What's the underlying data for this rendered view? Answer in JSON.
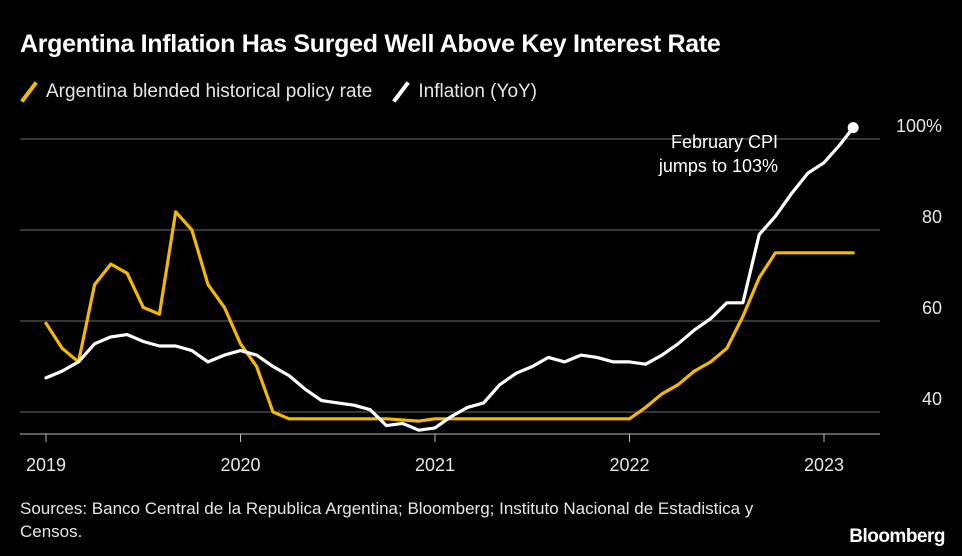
{
  "chart_data": {
    "type": "line",
    "title": "Argentina Inflation Has Surged Well Above Key Interest Rate",
    "x_ticks": [
      "2019",
      "2020",
      "2021",
      "2022",
      "2023"
    ],
    "y_ticks": [
      {
        "value": 40,
        "label": "40"
      },
      {
        "value": 60,
        "label": "60"
      },
      {
        "value": 80,
        "label": "80"
      },
      {
        "value": 100,
        "label": "100%"
      }
    ],
    "xlim": [
      2019.0,
      2023.29
    ],
    "ylim": [
      35,
      110
    ],
    "series": [
      {
        "name": "Argentina blended historical policy rate",
        "color": "#F5B800",
        "points": [
          [
            2019.0,
            59.5
          ],
          [
            2019.083,
            54
          ],
          [
            2019.167,
            51
          ],
          [
            2019.25,
            68
          ],
          [
            2019.333,
            72.5
          ],
          [
            2019.417,
            70.5
          ],
          [
            2019.5,
            63
          ],
          [
            2019.583,
            61.5
          ],
          [
            2019.667,
            84
          ],
          [
            2019.75,
            80
          ],
          [
            2019.833,
            68
          ],
          [
            2019.917,
            63
          ],
          [
            2020.0,
            55
          ],
          [
            2020.083,
            50
          ],
          [
            2020.167,
            40
          ],
          [
            2020.25,
            38.5
          ],
          [
            2020.5,
            38.5
          ],
          [
            2020.75,
            38.5
          ],
          [
            2020.917,
            38
          ],
          [
            2021.0,
            38.5
          ],
          [
            2021.5,
            38.5
          ],
          [
            2022.0,
            38.5
          ],
          [
            2022.083,
            41
          ],
          [
            2022.167,
            44
          ],
          [
            2022.25,
            46
          ],
          [
            2022.333,
            49
          ],
          [
            2022.417,
            51
          ],
          [
            2022.5,
            54
          ],
          [
            2022.583,
            61
          ],
          [
            2022.667,
            69.5
          ],
          [
            2022.75,
            75
          ],
          [
            2022.833,
            75
          ],
          [
            2023.0,
            75
          ],
          [
            2023.15,
            75
          ]
        ]
      },
      {
        "name": "Inflation (YoY)",
        "color": "#FFFFFF",
        "points": [
          [
            2019.0,
            47.5
          ],
          [
            2019.083,
            49
          ],
          [
            2019.167,
            51
          ],
          [
            2019.25,
            55
          ],
          [
            2019.333,
            56.5
          ],
          [
            2019.417,
            57
          ],
          [
            2019.5,
            55.5
          ],
          [
            2019.583,
            54.5
          ],
          [
            2019.667,
            54.5
          ],
          [
            2019.75,
            53.5
          ],
          [
            2019.833,
            51
          ],
          [
            2019.917,
            52.5
          ],
          [
            2020.0,
            53.5
          ],
          [
            2020.083,
            52.5
          ],
          [
            2020.167,
            50
          ],
          [
            2020.25,
            48
          ],
          [
            2020.333,
            45
          ],
          [
            2020.417,
            42.5
          ],
          [
            2020.5,
            42
          ],
          [
            2020.583,
            41.5
          ],
          [
            2020.667,
            40.5
          ],
          [
            2020.75,
            37
          ],
          [
            2020.833,
            37.5
          ],
          [
            2020.917,
            36
          ],
          [
            2021.0,
            36.5
          ],
          [
            2021.083,
            39
          ],
          [
            2021.167,
            41
          ],
          [
            2021.25,
            42
          ],
          [
            2021.333,
            46
          ],
          [
            2021.417,
            48.5
          ],
          [
            2021.5,
            50
          ],
          [
            2021.583,
            52
          ],
          [
            2021.667,
            51
          ],
          [
            2021.75,
            52.5
          ],
          [
            2021.833,
            52
          ],
          [
            2021.917,
            51
          ],
          [
            2022.0,
            51
          ],
          [
            2022.083,
            50.5
          ],
          [
            2022.167,
            52.5
          ],
          [
            2022.25,
            55
          ],
          [
            2022.333,
            58
          ],
          [
            2022.417,
            60.5
          ],
          [
            2022.5,
            64
          ],
          [
            2022.583,
            64
          ],
          [
            2022.667,
            79
          ],
          [
            2022.75,
            83
          ],
          [
            2022.833,
            88
          ],
          [
            2022.917,
            92.5
          ],
          [
            2023.0,
            94.8
          ],
          [
            2023.083,
            98.8
          ],
          [
            2023.15,
            102.5
          ]
        ]
      }
    ],
    "annotation": {
      "lines": [
        "February CPI",
        "jumps to 103%"
      ],
      "x": 2023.15,
      "y": 102.5
    }
  },
  "legend": {
    "items": [
      {
        "label": "Argentina blended historical policy rate",
        "color": "#F5B800"
      },
      {
        "label": "Inflation (YoY)",
        "color": "#FFFFFF"
      }
    ]
  },
  "footer": {
    "sources": "Sources: Banco Central de la Republica Argentina; Bloomberg; Instituto Nacional de Estadistica y Censos.",
    "logo": "Bloomberg"
  }
}
